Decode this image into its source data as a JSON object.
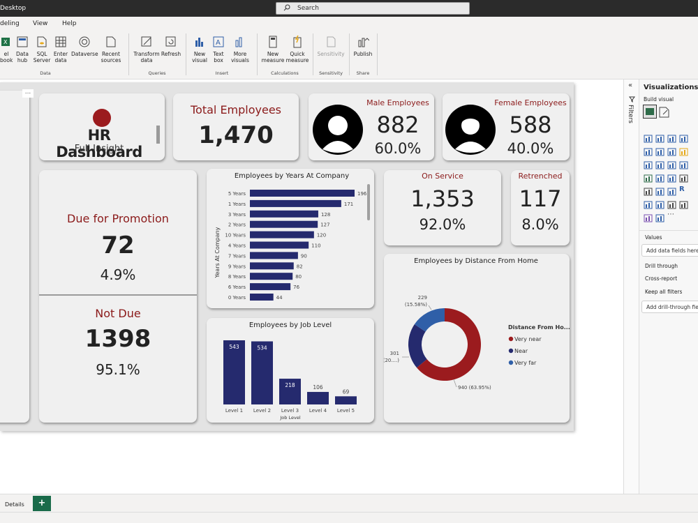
{
  "window": {
    "title": "Desktop",
    "search_placeholder": "Search"
  },
  "menu": {
    "items": [
      "deling",
      "View",
      "Help"
    ]
  },
  "ribbon": {
    "buttons": {
      "excel": "el\nbook",
      "datahub": "Data\nhub",
      "sql": "SQL\nServer",
      "enter": "Enter\ndata",
      "dataverse": "Dataverse",
      "recent": "Recent\nsources",
      "transform": "Transform\ndata",
      "refresh": "Refresh",
      "newvisual": "New\nvisual",
      "textbox": "Text\nbox",
      "morevisuals": "More\nvisuals",
      "newmeasure": "New\nmeasure",
      "quickmeasure": "Quick\nmeasure",
      "sensitivity": "Sensitivity",
      "publish": "Publish"
    },
    "groups": {
      "data": "Data",
      "queries": "Queries",
      "insert": "Insert",
      "calculations": "Calculations",
      "sensitivity": "Sensitivity",
      "share": "Share"
    }
  },
  "report": {
    "logo_title": "HR Dashboard",
    "logo_subtitle": "Full Insight",
    "total": {
      "label": "Total Employees",
      "value": "1,470"
    },
    "male": {
      "label": "Male Employees",
      "value": "882",
      "pct": "60.0%"
    },
    "female": {
      "label": "Female Employees",
      "value": "588",
      "pct": "40.0%"
    },
    "promotion": {
      "label": "Due for Promotion",
      "value": "72",
      "pct": "4.9%"
    },
    "notdue": {
      "label": "Not Due",
      "value": "1398",
      "pct": "95.1%"
    },
    "onservice": {
      "label": "On Service",
      "value": "1,353",
      "pct": "92.0%"
    },
    "retrenched": {
      "label": "Retrenched",
      "value": "117",
      "pct": "8.0%"
    },
    "colors": {
      "accent_red": "#8b1a1a",
      "bar_navy": "#252a6e",
      "donut_red": "#9b1b1e",
      "donut_navy": "#252a6e",
      "donut_blue": "#2f5fa8"
    }
  },
  "chart_data": [
    {
      "type": "bar",
      "orientation": "horizontal",
      "title": "Employees by Years At Company",
      "ylabel": "Years At Company",
      "categories": [
        "5 Years",
        "1 Years",
        "3 Years",
        "2 Years",
        "10 Years",
        "4 Years",
        "7 Years",
        "9 Years",
        "8 Years",
        "6 Years",
        "0 Years"
      ],
      "values": [
        196,
        171,
        128,
        127,
        120,
        110,
        90,
        82,
        80,
        76,
        44
      ]
    },
    {
      "type": "bar",
      "title": "Employees by Job Level",
      "xlabel": "Job Level",
      "categories": [
        "Level 1",
        "Level 2",
        "Level 3",
        "Level 4",
        "Level 5"
      ],
      "values": [
        543,
        534,
        218,
        106,
        69
      ]
    },
    {
      "type": "pie",
      "title": "Employees by Distance From Home",
      "legend_title": "Distance From Ho...",
      "legend_position": "right",
      "categories": [
        "Very near",
        "Near",
        "Very far"
      ],
      "values": [
        940,
        301,
        229
      ],
      "labels": [
        "940 (63.95%)",
        "301\n(20....)",
        "229\n(15.58%)"
      ]
    }
  ],
  "panes": {
    "filters_label": "Filters",
    "viz_title": "Visualizations",
    "build_visual": "Build visual",
    "values_label": "Values",
    "add_data_fields": "Add data fields here",
    "drill_through": "Drill through",
    "cross_report": "Cross-report",
    "keep_all_filters": "Keep all filters",
    "add_drill_fields": "Add drill-through fields here"
  },
  "tabs": {
    "details": "Details",
    "add": "+"
  }
}
